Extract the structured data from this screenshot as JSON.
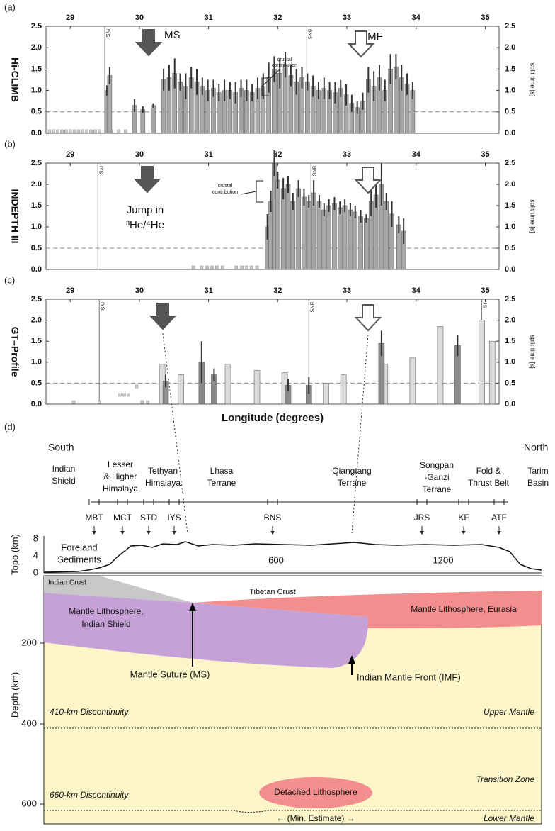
{
  "chart_data": [
    {
      "type": "bar",
      "panel": "(a)",
      "ylabel": "Hi-CLIMB",
      "y2label": "split time [s]",
      "xlim": [
        28.65,
        35.2
      ],
      "xticks": [
        29,
        30,
        31,
        32,
        33,
        34,
        35
      ],
      "ylim": [
        0,
        2.5
      ],
      "yticks": [
        {
          "value": 0,
          "label": "0.0"
        },
        0.5,
        {
          "value": 1,
          "label": "1.0"
        },
        1.5,
        {
          "value": 2,
          "label": "2.0"
        },
        2.5
      ],
      "y2lim": [
        0,
        2.5
      ],
      "y2ticks": [
        {
          "value": 0,
          "label": "0.0"
        },
        0.5,
        {
          "value": 1,
          "label": "1.0"
        },
        1.5,
        {
          "value": 2,
          "label": "2.0"
        },
        2.5
      ],
      "reference_line": 0.5,
      "vlines": [
        {
          "x": 29.5,
          "label": "IYS"
        },
        {
          "x": 32.42,
          "label": "BNS"
        }
      ],
      "annotations": [
        "MS",
        "IMF",
        "crustal",
        "contribution"
      ],
      "points": {
        "x": [
          28.7,
          28.76,
          28.82,
          28.88,
          28.94,
          29.0,
          29.06,
          29.12,
          29.18,
          29.24,
          29.3,
          29.36,
          29.42,
          29.6,
          29.7,
          29.8
        ],
        "values": [
          0.05,
          0.05,
          0.05,
          0.05,
          0.05,
          0.05,
          0.05,
          0.05,
          0.05,
          0.05,
          0.05,
          0.05,
          0.05,
          0.05,
          0.05,
          0.05
        ]
      },
      "series": [
        {
          "color": "#a6a6a6",
          "x": [
            29.53,
            29.57,
            29.93,
            30.05,
            30.2,
            30.35,
            30.43,
            30.51,
            30.59,
            30.67,
            30.75,
            30.83,
            30.91,
            30.99,
            31.07,
            31.15,
            31.23,
            31.31,
            31.39,
            31.47,
            31.55,
            31.63,
            31.71,
            31.79,
            31.87,
            31.95,
            32.03,
            32.11,
            32.19,
            32.27,
            32.35,
            32.43,
            32.51,
            32.59,
            32.67,
            32.75,
            32.83,
            32.91,
            32.99,
            33.07,
            33.15,
            33.23,
            33.31,
            33.39,
            33.47,
            33.55,
            33.63,
            33.71,
            33.79,
            33.87,
            33.95
          ],
          "values": [
            1.0,
            1.35,
            0.65,
            0.55,
            0.65,
            1.25,
            1.3,
            1.4,
            1.2,
            1.1,
            1.3,
            1.2,
            1.1,
            1.0,
            1.05,
            0.95,
            1.0,
            1.0,
            0.95,
            1.05,
            1.0,
            0.95,
            1.05,
            1.1,
            1.3,
            1.5,
            1.4,
            1.6,
            1.35,
            1.2,
            1.3,
            1.2,
            1.1,
            1.0,
            1.05,
            1.0,
            0.95,
            1.05,
            0.9,
            0.7,
            0.6,
            0.75,
            1.25,
            1.1,
            1.3,
            1.0,
            1.5,
            1.55,
            1.3,
            1.15,
            1.0
          ],
          "errors": [
            0.12,
            0.2,
            0.15,
            0.08,
            0.05,
            0.25,
            0.3,
            0.35,
            0.2,
            0.3,
            0.25,
            0.3,
            0.2,
            0.25,
            0.2,
            0.2,
            0.25,
            0.2,
            0.25,
            0.2,
            0.25,
            0.2,
            0.25,
            0.3,
            0.35,
            0.3,
            0.35,
            0.3,
            0.25,
            0.3,
            0.25,
            0.2,
            0.25,
            0.2,
            0.25,
            0.2,
            0.25,
            0.2,
            0.25,
            0.2,
            0.15,
            0.2,
            0.3,
            0.35,
            0.3,
            0.25,
            0.35,
            0.3,
            0.3,
            0.25,
            0.2
          ]
        }
      ]
    },
    {
      "type": "bar",
      "panel": "(b)",
      "ylabel": "INDEPTH III",
      "y2label": "split time [s]",
      "xlim": [
        28.65,
        35.2
      ],
      "xticks": [
        29,
        30,
        31,
        32,
        33,
        34,
        35
      ],
      "ylim": [
        0,
        2.5
      ],
      "yticks": [
        {
          "value": 0,
          "label": "0.0"
        },
        0.5,
        {
          "value": 1,
          "label": "1.0"
        },
        1.5,
        {
          "value": 2,
          "label": "2.0"
        },
        2.5
      ],
      "y2lim": [
        0,
        2.5
      ],
      "y2ticks": [
        {
          "value": 0,
          "label": "0.0"
        },
        0.5,
        {
          "value": 1,
          "label": "1.0"
        },
        1.5,
        {
          "value": 2,
          "label": "2.0"
        },
        2.5
      ],
      "reference_line": 0.5,
      "vlines": [
        {
          "x": 29.4,
          "label": "IYS"
        },
        {
          "x": 32.48,
          "label": "BNS"
        }
      ],
      "annotations": [
        "Jump in",
        "³He/⁴He",
        "crustal",
        "contribution"
      ],
      "points": {
        "x": [
          30.78,
          30.9,
          30.98,
          31.05,
          31.12,
          31.2,
          31.4,
          31.48,
          31.55,
          31.62,
          31.7
        ],
        "values": [
          0.05,
          0.05,
          0.05,
          0.05,
          0.05,
          0.05,
          0.05,
          0.05,
          0.05,
          0.05,
          0.05
        ]
      },
      "series": [
        {
          "color": "#a6a6a6",
          "x": [
            31.85,
            31.9,
            31.95,
            32.0,
            32.08,
            32.15,
            32.22,
            32.3,
            32.38,
            32.45,
            32.52,
            32.6,
            32.67,
            32.74,
            32.82,
            32.9,
            32.97,
            33.05,
            33.12,
            33.2,
            33.28,
            33.35,
            33.42,
            33.5,
            33.57,
            33.65,
            33.75,
            33.82
          ],
          "values": [
            1.0,
            1.6,
            2.5,
            2.1,
            1.9,
            2.0,
            1.6,
            1.9,
            1.7,
            1.6,
            1.8,
            1.6,
            1.4,
            1.5,
            1.55,
            1.45,
            1.5,
            1.4,
            1.35,
            1.25,
            1.2,
            1.6,
            1.75,
            2.0,
            1.6,
            1.3,
            1.05,
            0.9
          ],
          "errors": [
            0.3,
            0.25,
            0.3,
            0.2,
            0.25,
            0.2,
            0.2,
            0.2,
            0.2,
            0.15,
            0.3,
            0.15,
            0.15,
            0.15,
            0.15,
            0.15,
            0.15,
            0.15,
            0.15,
            0.15,
            0.1,
            0.35,
            0.3,
            0.5,
            0.2,
            0.3,
            0.2,
            0.3
          ]
        }
      ]
    },
    {
      "type": "bar",
      "panel": "(c)",
      "ylabel": "GT–Profile",
      "y2label": "split time [s]",
      "xlabel": "Longitude (degrees)",
      "xlim": [
        28.65,
        35.2
      ],
      "xticks": [
        29,
        30,
        31,
        32,
        33,
        34,
        35
      ],
      "ylim": [
        0,
        2.5
      ],
      "yticks": [
        {
          "value": 0,
          "label": "0.0"
        },
        0.5,
        {
          "value": 1,
          "label": "1.0"
        },
        1.5,
        {
          "value": 2,
          "label": "2.0"
        },
        2.5
      ],
      "y2lim": [
        0,
        2.5
      ],
      "y2ticks": [
        {
          "value": 0,
          "label": "0.0"
        },
        0.5,
        {
          "value": 1,
          "label": "1.0"
        },
        1.5,
        {
          "value": 2,
          "label": "2.0"
        },
        2.5
      ],
      "reference_line": 0.5,
      "vlines": [
        {
          "x": 29.42,
          "label": "IYS"
        },
        {
          "x": 32.45,
          "label": "BNS"
        },
        {
          "x": 34.95,
          "label": "JS"
        }
      ],
      "annotations": [],
      "points": {
        "x": [
          29.05,
          29.42,
          29.72,
          29.78,
          29.84,
          29.96,
          30.04,
          30.12
        ],
        "values": [
          0.05,
          0.05,
          0.22,
          0.22,
          0.22,
          0.42,
          0.05,
          0.05
        ]
      },
      "series": [
        {
          "color": "#dcdcdc",
          "x": [
            30.33,
            30.6,
            31.28,
            31.7,
            32.1,
            32.7,
            32.95,
            33.55,
            33.95,
            34.35,
            34.95,
            35.1
          ],
          "values": [
            0.95,
            0.7,
            0.95,
            0.8,
            0.75,
            0.5,
            0.7,
            0.95,
            1.1,
            1.85,
            2.0,
            1.5
          ]
        },
        {
          "color": "#8a8a8a",
          "x": [
            30.38,
            30.9,
            31.08,
            32.15,
            32.45,
            33.5,
            34.6
          ],
          "values": [
            0.55,
            1.0,
            0.7,
            0.45,
            0.45,
            1.45,
            1.4
          ],
          "errors": [
            0.15,
            0.5,
            0.15,
            0.15,
            0.2,
            0.3,
            0.25
          ]
        }
      ]
    }
  ],
  "diagram": {
    "panel": "(d)",
    "south": "South",
    "north": "North",
    "regions": [
      [
        "Indian",
        "Shield"
      ],
      [
        "Lesser",
        "& Higher",
        "Himalaya"
      ],
      [
        "Tethyan",
        "Himalaya"
      ],
      [
        "Lhasa",
        "Terrane"
      ],
      [
        "Qiangtang",
        "Terrane"
      ],
      [
        "Songpan",
        "-Ganzi",
        "Terrane"
      ],
      [
        "Fold &",
        "Thrust Belt"
      ],
      [
        "Tarim",
        "Basin"
      ]
    ],
    "sutures": [
      "MBT",
      "MCT",
      "STD",
      "IYS",
      "BNS",
      "JRS",
      "KF",
      "ATF"
    ],
    "topo_label": "Topo (km)",
    "topo_ticks": [
      "8",
      "4",
      "0"
    ],
    "distance_ticks": [
      "600",
      "1200"
    ],
    "foreland": [
      "Foreland",
      "Sediments"
    ],
    "depth_label": "Depth (km)",
    "depth_ticks": [
      "200",
      "400",
      "600"
    ],
    "indian_crust": "Indian Crust",
    "tibetan_crust": "Tibetan Crust",
    "indian_lithosphere": [
      "Mantle Lithosphere,",
      "Indian Shield"
    ],
    "eurasian_lithosphere": "Mantle Lithosphere, Eurasia",
    "mantle_suture": "Mantle Suture (MS)",
    "mantle_front": "Indian Mantle Front (IMF)",
    "d410": "410-km Discontinuity",
    "upper_mantle": "Upper Mantle",
    "transition_zone": "Transition Zone",
    "d660": "660-km Discontinuity",
    "lower_mantle": "Lower Mantle",
    "detached": "Detached Lithosphere",
    "min_estimate": "← (Min. Estimate) →"
  }
}
